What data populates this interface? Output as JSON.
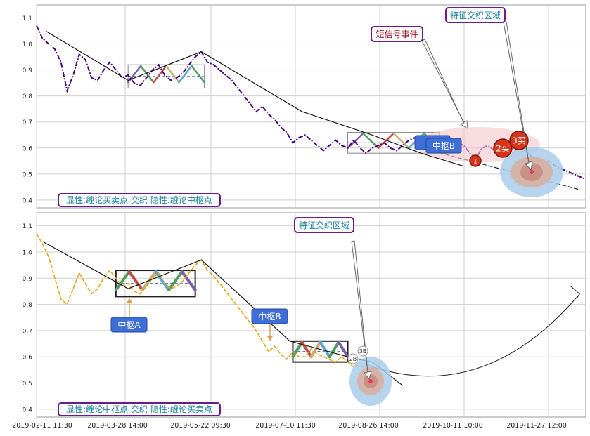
{
  "colors": {
    "grid": "#cfcfcf",
    "frame": "#9a9a9a",
    "price_top": "#4b0082",
    "price_bottom": "#e8a317",
    "trend": "#1a1a1a",
    "pivot_box": "#3a6ec2",
    "label_bg": "#3f6fd6",
    "callout_border": "#6a1b8a",
    "callout_text_red": "#a01020",
    "callout_text_teal": "#1b7fa0",
    "buy_marker": "#d8341a",
    "halo_outer": "#a9cdea",
    "halo_inner": "#d7b0a0",
    "halo_core": "#e63950",
    "ellipse_pink": "#f4c6cc",
    "seg_purple": "#7b5ea7",
    "seg_green": "#4f9e5b",
    "seg_red": "#c64b4b",
    "seg_tan": "#c9ae74",
    "seg_blue": "#5aa8d6"
  },
  "chart_data": [
    {
      "type": "line",
      "panel": "top",
      "ylim": [
        0.37,
        1.15
      ],
      "yticks": [
        "0.4",
        "0.5",
        "0.6",
        "0.7",
        "0.8",
        "0.9",
        "1.0",
        "1.1"
      ],
      "grid": true,
      "series": [
        {
          "x": [
            0,
            2,
            4,
            6,
            8,
            10,
            12,
            14,
            16,
            18,
            20,
            22,
            24,
            26,
            28,
            30,
            32,
            34,
            36,
            38,
            40,
            42,
            44,
            46,
            48,
            50,
            52,
            54,
            56,
            58,
            60,
            62,
            64,
            66,
            68,
            70,
            72,
            74,
            76,
            78,
            80,
            82,
            84,
            86,
            88,
            90,
            92,
            94,
            96,
            98,
            100,
            102,
            104,
            106,
            108,
            110,
            112,
            114,
            116,
            118,
            120,
            122,
            124,
            126,
            128,
            130,
            132,
            134,
            136,
            138,
            140,
            142,
            144,
            146,
            148,
            150,
            152,
            154,
            156,
            158,
            160,
            162,
            164,
            166,
            168,
            170,
            172,
            174,
            176,
            178,
            180
          ],
          "y": [
            1.07,
            1.02,
            1.0,
            0.98,
            0.93,
            0.82,
            0.88,
            0.96,
            0.94,
            0.87,
            0.86,
            0.9,
            0.93,
            0.9,
            0.87,
            0.88,
            0.85,
            0.84,
            0.87,
            0.9,
            0.92,
            0.88,
            0.86,
            0.87,
            0.89,
            0.92,
            0.95,
            0.97,
            0.93,
            0.92,
            0.9,
            0.88,
            0.86,
            0.83,
            0.8,
            0.77,
            0.74,
            0.76,
            0.73,
            0.71,
            0.68,
            0.66,
            0.62,
            0.64,
            0.65,
            0.63,
            0.61,
            0.59,
            0.61,
            0.63,
            0.61,
            0.6,
            0.63,
            0.6,
            0.58,
            0.6,
            0.61,
            0.62,
            0.6,
            0.59,
            0.61,
            0.63,
            0.64,
            0.61,
            0.6,
            0.6,
            0.59,
            0.58,
            0.6,
            0.62,
            0.61,
            0.58,
            0.56,
            0.6,
            0.61,
            0.59,
            0.58,
            0.57,
            0.58,
            0.6,
            0.59,
            0.57,
            0.55,
            0.54,
            0.55,
            0.53,
            0.52,
            0.51,
            0.5,
            0.49,
            0.48
          ]
        }
      ],
      "trend_lines": [
        {
          "x": [
            3,
            30,
            54,
            87,
            110,
            126,
            140
          ],
          "y": [
            1.05,
            0.86,
            0.97,
            0.74,
            0.65,
            0.58,
            0.53
          ]
        },
        {
          "x": [
            126,
            178
          ],
          "y": [
            0.6,
            0.44
          ]
        }
      ],
      "pivots": [
        {
          "x0": 30,
          "x1": 55,
          "y0": 0.83,
          "y1": 0.92
        },
        {
          "x0": 102,
          "x1": 132,
          "y0": 0.58,
          "y1": 0.66
        }
      ],
      "callouts": [
        "短信号事件",
        "特征交织区域"
      ],
      "pivot_labels": [
        "中枢B"
      ],
      "buy_labels": [
        "1",
        "2买",
        "3买"
      ],
      "footer": "显性:缠论买卖点 交织 隐性:缠论中枢点"
    },
    {
      "type": "line",
      "panel": "bottom",
      "ylim": [
        0.37,
        1.15
      ],
      "yticks": [
        "0.4",
        "0.5",
        "0.6",
        "0.7",
        "0.8",
        "0.9",
        "1.0",
        "1.1"
      ],
      "grid": true,
      "series": [
        {
          "x": [
            0,
            2,
            4,
            6,
            8,
            10,
            12,
            14,
            16,
            18,
            20,
            22,
            24,
            26,
            28,
            30,
            32,
            34,
            36,
            38,
            40,
            42,
            44,
            46,
            48,
            50,
            52,
            54,
            56,
            58,
            60,
            62,
            64,
            66,
            68,
            70,
            72,
            74,
            76,
            78,
            80,
            82,
            84,
            86,
            88,
            90,
            92,
            94,
            96,
            98,
            100,
            102,
            104,
            106,
            108
          ],
          "y": [
            1.07,
            1.03,
            0.98,
            0.9,
            0.82,
            0.8,
            0.86,
            0.92,
            0.88,
            0.84,
            0.86,
            0.9,
            0.93,
            0.9,
            0.87,
            0.88,
            0.85,
            0.84,
            0.87,
            0.9,
            0.92,
            0.88,
            0.86,
            0.87,
            0.89,
            0.92,
            0.95,
            0.97,
            0.93,
            0.91,
            0.88,
            0.85,
            0.82,
            0.79,
            0.76,
            0.73,
            0.7,
            0.66,
            0.62,
            0.64,
            0.61,
            0.59,
            0.62,
            0.6,
            0.6,
            0.63,
            0.61,
            0.6,
            0.59,
            0.58,
            0.6,
            0.58,
            0.56,
            0.57,
            0.55
          ]
        }
      ],
      "arc": {
        "x": [
          108,
          178
        ],
        "y": [
          0.57,
          0.84
        ]
      },
      "trend_lines": [
        {
          "x": [
            2,
            30,
            54,
            83,
            102,
            110,
            120
          ],
          "y": [
            1.04,
            0.86,
            0.97,
            0.66,
            0.6,
            0.58,
            0.49
          ]
        }
      ],
      "pivots": [
        {
          "x0": 26,
          "x1": 52,
          "y0": 0.83,
          "y1": 0.93
        },
        {
          "x0": 84,
          "x1": 102,
          "y0": 0.58,
          "y1": 0.66
        }
      ],
      "callouts": [
        "特征交织区域"
      ],
      "pivot_labels": [
        "中枢A",
        "中枢B"
      ],
      "small_labels": [
        "2B",
        "3B"
      ],
      "footer": "显性:缠论中枢点 交织 隐性:缠论买卖点",
      "x_ticks": [
        "2019-02-11 11:30",
        "2019-03-28 14:00",
        "2019-05-22 09:30",
        "2019-07-10 11:30",
        "2019-08-26 14:00",
        "2019-10-11 10:00",
        "2019-11-27 12:00"
      ]
    }
  ]
}
